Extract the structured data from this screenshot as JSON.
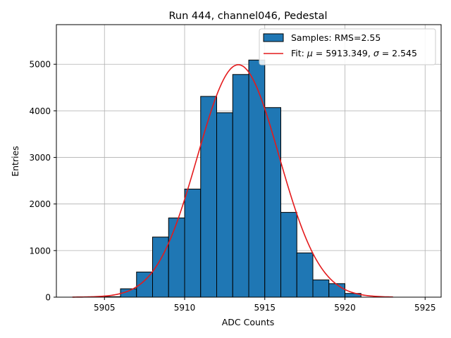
{
  "chart_data": {
    "type": "bar",
    "title": "Run 444, channel046, Pedestal",
    "xlabel": "ADC Counts",
    "ylabel": "Entries",
    "xlim": [
      5902.0,
      5926.0
    ],
    "ylim": [
      0,
      5850
    ],
    "grid": true,
    "xticks": [
      5905,
      5910,
      5915,
      5920,
      5925
    ],
    "yticks": [
      0,
      1000,
      2000,
      3000,
      4000,
      5000
    ],
    "bin_width": 1,
    "histogram": {
      "name": "Samples: RMS=2.55",
      "bin_starts": [
        5905,
        5906,
        5907,
        5908,
        5909,
        5910,
        5911,
        5912,
        5913,
        5914,
        5915,
        5916,
        5917,
        5918,
        5919,
        5920
      ],
      "values": [
        10,
        180,
        540,
        1290,
        1700,
        2320,
        4310,
        3960,
        4780,
        5090,
        4070,
        1820,
        950,
        370,
        290,
        80
      ],
      "color": "#1f77b4",
      "edge_color": "#000000"
    },
    "fit": {
      "name": "Fit: μ = 5913.349, σ = 2.545",
      "legend_prefix": "Fit: ",
      "legend_mu_symbol": "μ",
      "legend_mu_value": " = 5913.349, ",
      "legend_sigma_symbol": "σ",
      "legend_sigma_value": " = 2.545",
      "mu": 5913.349,
      "sigma": 2.545,
      "amplitude": 4990,
      "x_range": [
        5903,
        5923
      ],
      "color": "#e41a1c"
    },
    "legend_position": "top-right"
  }
}
